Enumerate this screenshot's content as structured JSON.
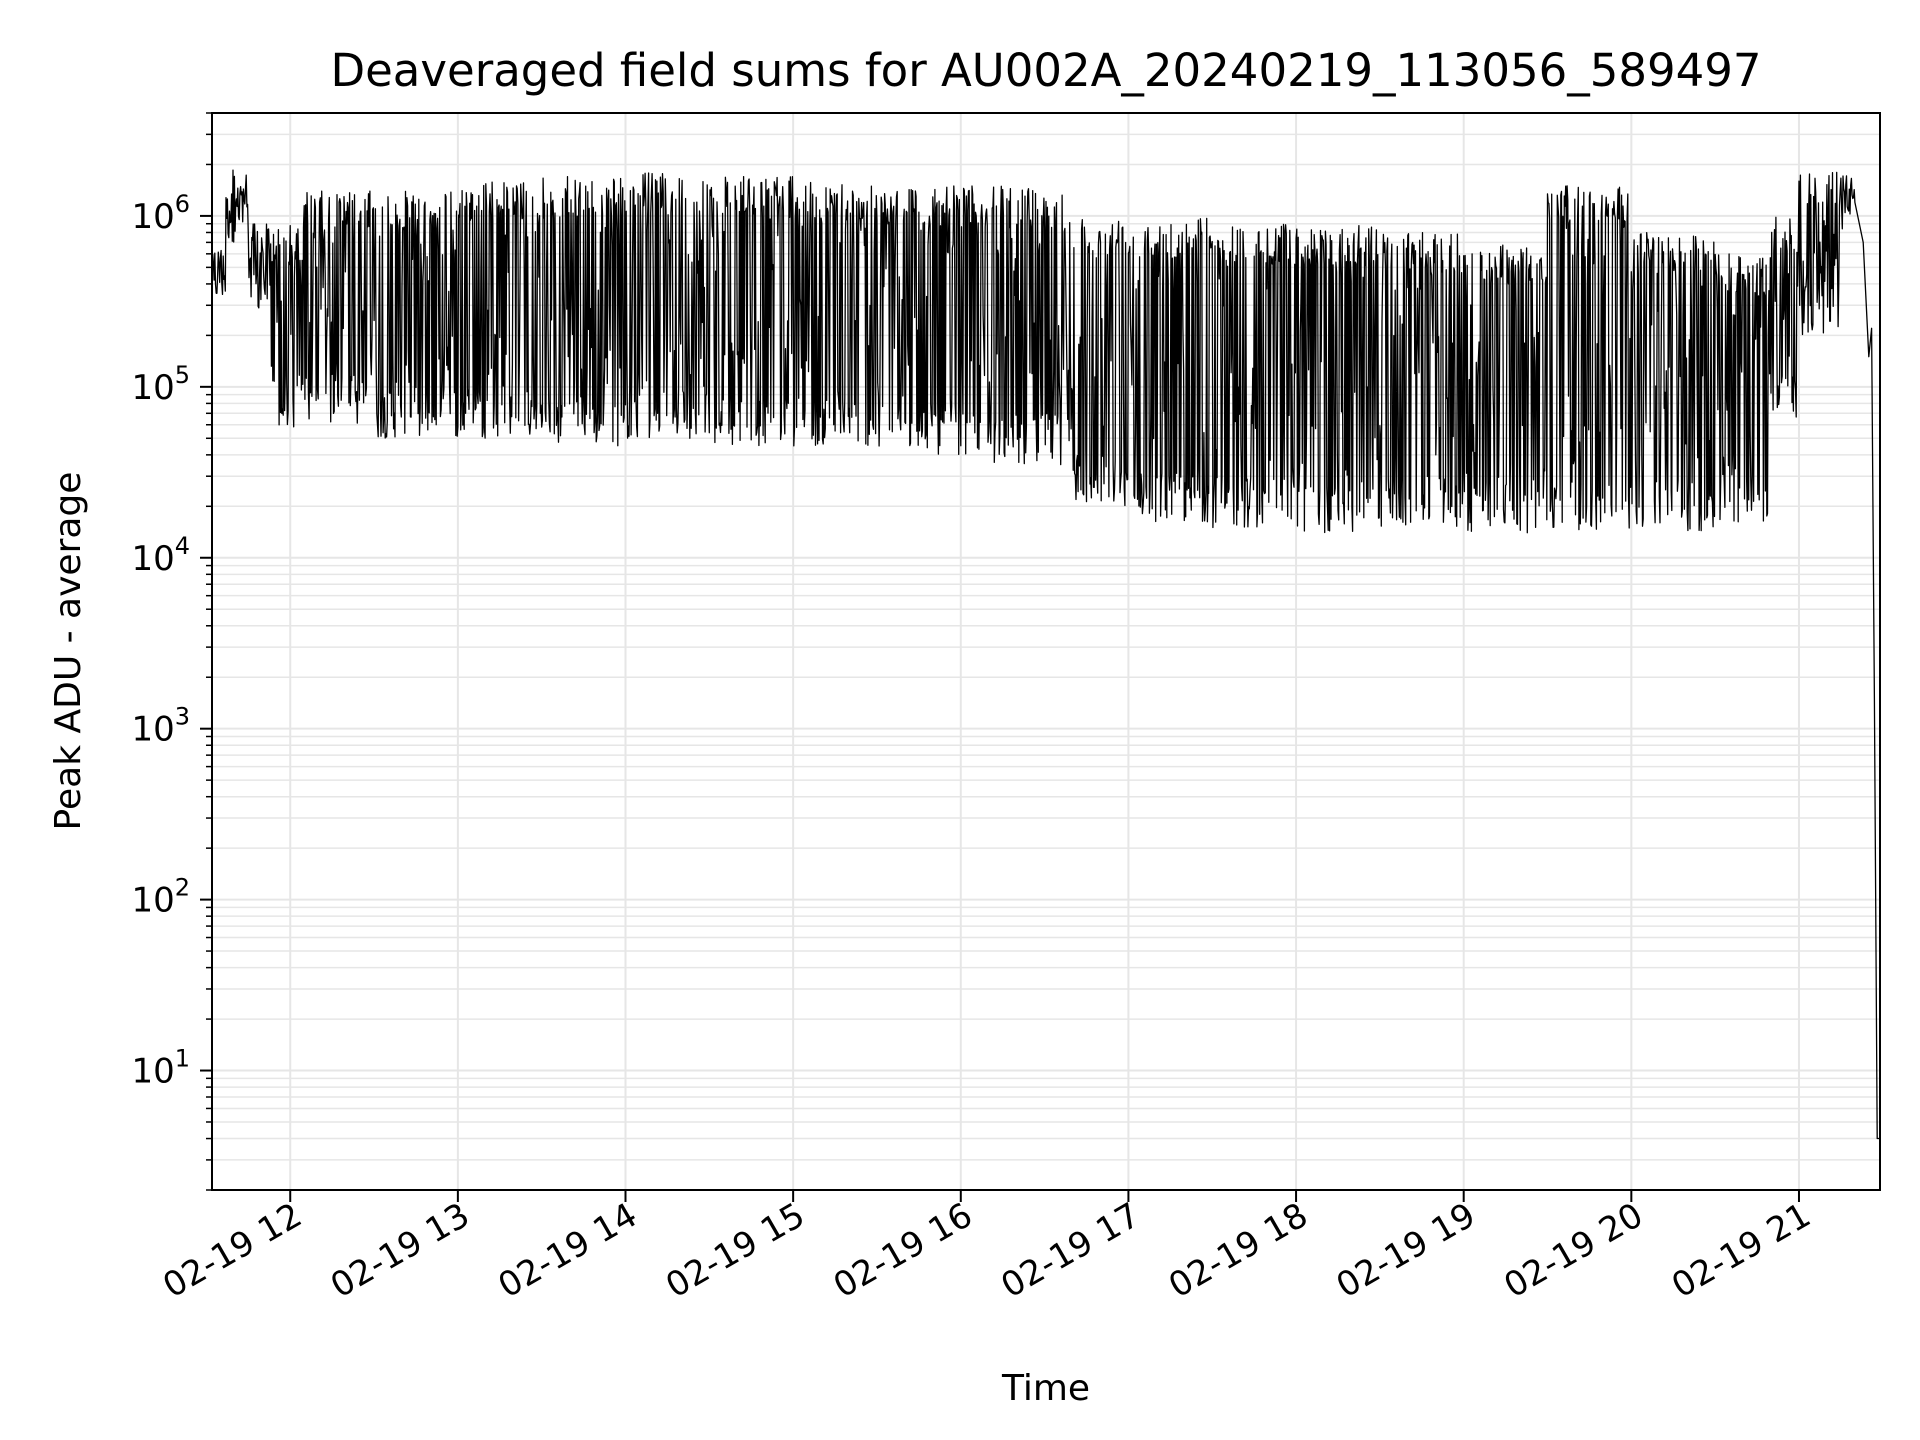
{
  "chart_data": {
    "type": "line",
    "title": "Deaveraged field sums for AU002A_20240219_113056_589497",
    "xlabel": "Time",
    "ylabel": "Peak ADU - average",
    "yscale": "log",
    "xlim": [
      "2024-02-19T11:32",
      "2024-02-19T21:29"
    ],
    "ylim": [
      2,
      4000000
    ],
    "grid": true,
    "grid_color": "#e6e6e6",
    "line_color": "#000000",
    "x_ticks": [
      {
        "value": "2024-02-19T12:00",
        "label": "02-19 12"
      },
      {
        "value": "2024-02-19T13:00",
        "label": "02-19 13"
      },
      {
        "value": "2024-02-19T14:00",
        "label": "02-19 14"
      },
      {
        "value": "2024-02-19T15:00",
        "label": "02-19 15"
      },
      {
        "value": "2024-02-19T16:00",
        "label": "02-19 16"
      },
      {
        "value": "2024-02-19T17:00",
        "label": "02-19 17"
      },
      {
        "value": "2024-02-19T18:00",
        "label": "02-19 18"
      },
      {
        "value": "2024-02-19T19:00",
        "label": "02-19 19"
      },
      {
        "value": "2024-02-19T20:00",
        "label": "02-19 20"
      },
      {
        "value": "2024-02-19T21:00",
        "label": "02-19 21"
      }
    ],
    "y_ticks": [
      {
        "value": 10,
        "base": "10",
        "exp": "1"
      },
      {
        "value": 100,
        "base": "10",
        "exp": "2"
      },
      {
        "value": 1000,
        "base": "10",
        "exp": "3"
      },
      {
        "value": 10000,
        "base": "10",
        "exp": "4"
      },
      {
        "value": 100000,
        "base": "10",
        "exp": "5"
      },
      {
        "value": 1000000,
        "base": "10",
        "exp": "6"
      }
    ],
    "series": [
      {
        "segments": [
          {
            "start": "2024-02-19T11:32",
            "end": "2024-02-19T11:37",
            "low": 300000,
            "high": 700000
          },
          {
            "start": "2024-02-19T11:37",
            "end": "2024-02-19T11:45",
            "low": 700000,
            "high": 2000000
          },
          {
            "start": "2024-02-19T11:45",
            "end": "2024-02-19T11:53",
            "low": 250000,
            "high": 900000
          },
          {
            "start": "2024-02-19T11:53",
            "end": "2024-02-19T12:05",
            "low": 55000,
            "high": 900000
          },
          {
            "start": "2024-02-19T12:05",
            "end": "2024-02-19T12:30",
            "low": 60000,
            "high": 1400000
          },
          {
            "start": "2024-02-19T12:30",
            "end": "2024-02-19T13:00",
            "low": 50000,
            "high": 1400000
          },
          {
            "start": "2024-02-19T13:00",
            "end": "2024-02-19T13:30",
            "low": 50000,
            "high": 1600000
          },
          {
            "start": "2024-02-19T13:30",
            "end": "2024-02-19T14:00",
            "low": 45000,
            "high": 1700000
          },
          {
            "start": "2024-02-19T14:00",
            "end": "2024-02-19T14:30",
            "low": 50000,
            "high": 1800000
          },
          {
            "start": "2024-02-19T14:30",
            "end": "2024-02-19T15:00",
            "low": 45000,
            "high": 1700000
          },
          {
            "start": "2024-02-19T15:00",
            "end": "2024-02-19T15:30",
            "low": 45000,
            "high": 1600000
          },
          {
            "start": "2024-02-19T15:30",
            "end": "2024-02-19T16:00",
            "low": 40000,
            "high": 1500000
          },
          {
            "start": "2024-02-19T16:00",
            "end": "2024-02-19T16:40",
            "low": 35000,
            "high": 1500000
          },
          {
            "start": "2024-02-19T16:40",
            "end": "2024-02-19T17:00",
            "low": 20000,
            "high": 1000000
          },
          {
            "start": "2024-02-19T17:00",
            "end": "2024-02-19T17:30",
            "low": 16000,
            "high": 1000000
          },
          {
            "start": "2024-02-19T17:30",
            "end": "2024-02-19T18:00",
            "low": 15000,
            "high": 900000
          },
          {
            "start": "2024-02-19T18:00",
            "end": "2024-02-19T18:30",
            "low": 14000,
            "high": 900000
          },
          {
            "start": "2024-02-19T18:30",
            "end": "2024-02-19T19:00",
            "low": 15000,
            "high": 800000
          },
          {
            "start": "2024-02-19T19:00",
            "end": "2024-02-19T19:30",
            "low": 14000,
            "high": 700000
          },
          {
            "start": "2024-02-19T19:30",
            "end": "2024-02-19T20:00",
            "low": 14000,
            "high": 1500000
          },
          {
            "start": "2024-02-19T20:00",
            "end": "2024-02-19T20:30",
            "low": 14000,
            "high": 800000
          },
          {
            "start": "2024-02-19T20:30",
            "end": "2024-02-19T20:50",
            "low": 16000,
            "high": 600000
          },
          {
            "start": "2024-02-19T20:50",
            "end": "2024-02-19T21:00",
            "low": 60000,
            "high": 1000000
          },
          {
            "start": "2024-02-19T21:00",
            "end": "2024-02-19T21:15",
            "low": 200000,
            "high": 1800000
          },
          {
            "start": "2024-02-19T21:15",
            "end": "2024-02-19T21:20",
            "low": 800000,
            "high": 1800000
          }
        ],
        "tail": [
          {
            "x": "2024-02-19T21:20",
            "y": 1200000
          },
          {
            "x": "2024-02-19T21:23",
            "y": 700000
          },
          {
            "x": "2024-02-19T21:25",
            "y": 150000
          },
          {
            "x": "2024-02-19T21:26",
            "y": 220000
          },
          {
            "x": "2024-02-19T21:27",
            "y": 1500
          },
          {
            "x": "2024-02-19T21:28",
            "y": 4
          },
          {
            "x": "2024-02-19T21:29",
            "y": 4
          }
        ]
      }
    ]
  }
}
